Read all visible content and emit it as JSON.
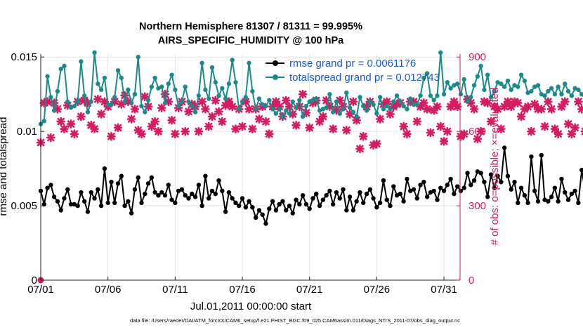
{
  "chart_data": {
    "type": "line",
    "title_line1": "Northern Hemisphere 81307 / 81311 = 99.995%",
    "title_line2": "AIRS_SPECIFIC_HUMIDITY @ 100 hPa",
    "xlabel": "Jul.01,2011 00:00:00 start",
    "ylabel_left": "rmse and totalspread",
    "ylabel_right": "# of obs: o=possible; ×=evaluated",
    "footer": "data file: /Users/raeder/DAI/ATM_forcXX/CAM6_setup/f.e21.FHIST_BGC.f09_025.CAM6assim.011/Diags_NTrS_2011-07/obs_diag_output.nc",
    "x_tick_labels": [
      "07/01",
      "07/06",
      "07/11",
      "07/16",
      "07/21",
      "07/26",
      "07/31"
    ],
    "x_tick_days": [
      0,
      5,
      10,
      15,
      20,
      25,
      30
    ],
    "x_range_days": [
      0,
      31.2
    ],
    "y_left_range": [
      0,
      0.0152
    ],
    "y_left_ticks": [
      0,
      0.005,
      0.01,
      0.015
    ],
    "y_left_tick_labels": [
      "0",
      "0.005",
      "0.01",
      "0.015"
    ],
    "y_right_range": [
      0,
      912
    ],
    "y_right_ticks": [
      0,
      300,
      600,
      900
    ],
    "y_right_tick_labels": [
      "0",
      "300",
      "600",
      "900"
    ],
    "grid": true,
    "legend_position": "top-right",
    "x_step_days": 0.25,
    "series": [
      {
        "name": "rmse grand pr = 0.0061176",
        "axis": "left",
        "color": "#000000",
        "marker": "dot",
        "values": [
          0.006,
          0.0051,
          0.0062,
          0.0064,
          0.0056,
          0.0053,
          0.0047,
          0.0055,
          0.0061,
          0.0051,
          0.0051,
          0.005,
          0.0059,
          0.0053,
          0.0046,
          0.0059,
          0.0055,
          0.0061,
          0.005,
          0.0075,
          0.0052,
          0.0066,
          0.0052,
          0.0065,
          0.007,
          0.005,
          0.0053,
          0.0045,
          0.0061,
          0.0069,
          0.0052,
          0.0058,
          0.0065,
          0.0069,
          0.0059,
          0.0057,
          0.0059,
          0.0057,
          0.0064,
          0.0054,
          0.0052,
          0.006,
          0.0061,
          0.0057,
          0.0055,
          0.0058,
          0.0056,
          0.0064,
          0.005,
          0.007,
          0.0055,
          0.006,
          0.0058,
          0.0067,
          0.006,
          0.0046,
          0.0059,
          0.0055,
          0.0052,
          0.005,
          0.0055,
          0.0049,
          0.0053,
          0.0049,
          0.0042,
          0.0047,
          0.0044,
          0.0038,
          0.0048,
          0.0053,
          0.0047,
          0.0051,
          0.0053,
          0.0047,
          0.005,
          0.0045,
          0.0054,
          0.0051,
          0.0057,
          0.0051,
          0.0048,
          0.0055,
          0.0058,
          0.005,
          0.0054,
          0.0057,
          0.006,
          0.0051,
          0.0059,
          0.0055,
          0.0061,
          0.0047,
          0.0056,
          0.0047,
          0.0053,
          0.0059,
          0.0052,
          0.0058,
          0.0061,
          0.0055,
          0.0049,
          0.0052,
          0.0067,
          0.0054,
          0.005,
          0.0063,
          0.0057,
          0.0058,
          0.0053,
          0.0068,
          0.006,
          0.0061,
          0.0055,
          0.0064,
          0.0066,
          0.0056,
          0.0059,
          0.006,
          0.0054,
          0.0062,
          0.006,
          0.0064,
          0.0068,
          0.0058,
          0.0063,
          0.006,
          0.0062,
          0.0072,
          0.0064,
          0.0067,
          0.0073,
          0.0072,
          0.0066,
          0.0056,
          0.0071,
          0.0062,
          0.007,
          0.0066,
          0.0089,
          0.007,
          0.0061,
          0.0066,
          0.0052,
          0.0062,
          0.0057,
          0.0052,
          0.0083,
          0.006,
          0.0053,
          0.0084,
          0.0054,
          0.0053,
          0.0056,
          0.0062,
          0.0053,
          0.0068,
          0.0059,
          0.0054,
          0.0058,
          0.006,
          0.0052,
          0.0074,
          0.006,
          0.0056,
          0.0054,
          0.005,
          0.0062,
          0.0063,
          0.0066,
          0.008,
          0.0066,
          0.006,
          0.0064,
          0.0064,
          0.0055,
          0.0062,
          0.0068,
          0.0055,
          0.0062,
          0.0058,
          0.0052,
          0.0061,
          0.0054,
          0.0061,
          0.0052,
          0.0059,
          0.005,
          0.0051,
          0.0075,
          0.0057,
          0.0059,
          0.006
        ]
      },
      {
        "name": "totalspread grand pr = 0.012743",
        "axis": "left",
        "color": "#1a8a8a",
        "marker": "dot",
        "values": [
          0.0105,
          0.0107,
          0.0137,
          0.0123,
          0.0114,
          0.0127,
          0.0142,
          0.0144,
          0.012,
          0.0116,
          0.0117,
          0.012,
          0.0147,
          0.0124,
          0.0113,
          0.012,
          0.0153,
          0.0132,
          0.0128,
          0.0136,
          0.0118,
          0.0118,
          0.0123,
          0.0141,
          0.0136,
          0.012,
          0.0128,
          0.0119,
          0.0125,
          0.015,
          0.0117,
          0.0113,
          0.0121,
          0.013,
          0.0136,
          0.0129,
          0.013,
          0.0119,
          0.0132,
          0.0138,
          0.0128,
          0.0117,
          0.012,
          0.013,
          0.012,
          0.0117,
          0.0113,
          0.0124,
          0.0146,
          0.0128,
          0.0122,
          0.0143,
          0.0133,
          0.0124,
          0.0129,
          0.0122,
          0.0132,
          0.0148,
          0.0133,
          0.0115,
          0.012,
          0.0123,
          0.0146,
          0.0127,
          0.0115,
          0.0122,
          0.0118,
          0.0117,
          0.0121,
          0.0115,
          0.0112,
          0.0115,
          0.011,
          0.0114,
          0.0112,
          0.012,
          0.0116,
          0.0121,
          0.011,
          0.0117,
          0.012,
          0.0121,
          0.0122,
          0.0114,
          0.0115,
          0.0116,
          0.0125,
          0.0113,
          0.012,
          0.0112,
          0.0115,
          0.0126,
          0.0116,
          0.0113,
          0.011,
          0.0123,
          0.0117,
          0.0114,
          0.012,
          0.0118,
          0.0112,
          0.0123,
          0.0115,
          0.0117,
          0.0115,
          0.012,
          0.0124,
          0.012,
          0.0117,
          0.0115,
          0.0122,
          0.0118,
          0.0118,
          0.0124,
          0.0136,
          0.0139,
          0.0124,
          0.0121,
          0.0124,
          0.0153,
          0.0125,
          0.0133,
          0.0129,
          0.0131,
          0.0132,
          0.0125,
          0.0135,
          0.012,
          0.0123,
          0.0131,
          0.0137,
          0.0144,
          0.0128,
          0.0138,
          0.0123,
          0.0127,
          0.0133,
          0.0132,
          0.013,
          0.0134,
          0.0128,
          0.0131,
          0.013,
          0.0138,
          0.0134,
          0.0126,
          0.0127,
          0.013,
          0.0131,
          0.0125,
          0.0124,
          0.0127,
          0.0129,
          0.0125,
          0.013,
          0.0125,
          0.0132,
          0.0127,
          0.0124,
          0.0129,
          0.0128,
          0.0125,
          0.0122,
          0.0131,
          0.0127,
          0.0126,
          0.0122,
          0.0131,
          0.0124,
          0.0121,
          0.0125,
          0.0133,
          0.0123,
          0.0125,
          0.0127,
          0.0121,
          0.0125,
          0.0124,
          0.0129,
          0.0122,
          0.0126,
          0.0124,
          0.0121,
          0.0125,
          0.0126,
          0.0121,
          0.0124,
          0.012,
          0.013,
          0.0126,
          0.0126,
          0.0127
        ]
      },
      {
        "name": "# of obs possible",
        "axis": "right",
        "color": "#d81b60",
        "marker": "circle",
        "values": [
          0
        ]
      },
      {
        "name": "# of obs evaluated",
        "axis": "right",
        "color": "#d81b60",
        "marker": "cross",
        "values": [
          555,
          715,
          720,
          575,
          715,
          690,
          640,
          610,
          705,
          630,
          590,
          720,
          660,
          725,
          715,
          625,
          610,
          730,
          670,
          720,
          700,
          580,
          720,
          615,
          710,
          745,
          720,
          650,
          690,
          605,
          590,
          740,
          700,
          620,
          640,
          600,
          695,
          750,
          720,
          645,
          590,
          695,
          720,
          600,
          680,
          710,
          700,
          600,
          720,
          690,
          620,
          660,
          725,
          680,
          640,
          705,
          720,
          700,
          610,
          690,
          620,
          720,
          690,
          610,
          690,
          650,
          700,
          640,
          590,
          700,
          720,
          700,
          660,
          725,
          700,
          670,
          625,
          700,
          750,
          675,
          615,
          715,
          725,
          640,
          660,
          725,
          700,
          610,
          685,
          725,
          700,
          605,
          670,
          720,
          645,
          530,
          580,
          700,
          720,
          545,
          550,
          650,
          710,
          720,
          670,
          700,
          710,
          715,
          620,
          590,
          720,
          720,
          640,
          700,
          715,
          690,
          595,
          685,
          700,
          620,
          560,
          600,
          700,
          720,
          700,
          580,
          590,
          730,
          715,
          690,
          570,
          600,
          720,
          715,
          640,
          700,
          690,
          610,
          700,
          720,
          700,
          720,
          715,
          660,
          690,
          700,
          600,
          710,
          690,
          690,
          620,
          720,
          690,
          610,
          590,
          700,
          720,
          630,
          590,
          615,
          720,
          690,
          600,
          560,
          610,
          640,
          700,
          715,
          680,
          600,
          660,
          720,
          720,
          690,
          590,
          700,
          640,
          650,
          720,
          700,
          610,
          570,
          690,
          715,
          720,
          600,
          620,
          650,
          690,
          720,
          730,
          620,
          600,
          590,
          700,
          620,
          640
        ]
      }
    ]
  }
}
